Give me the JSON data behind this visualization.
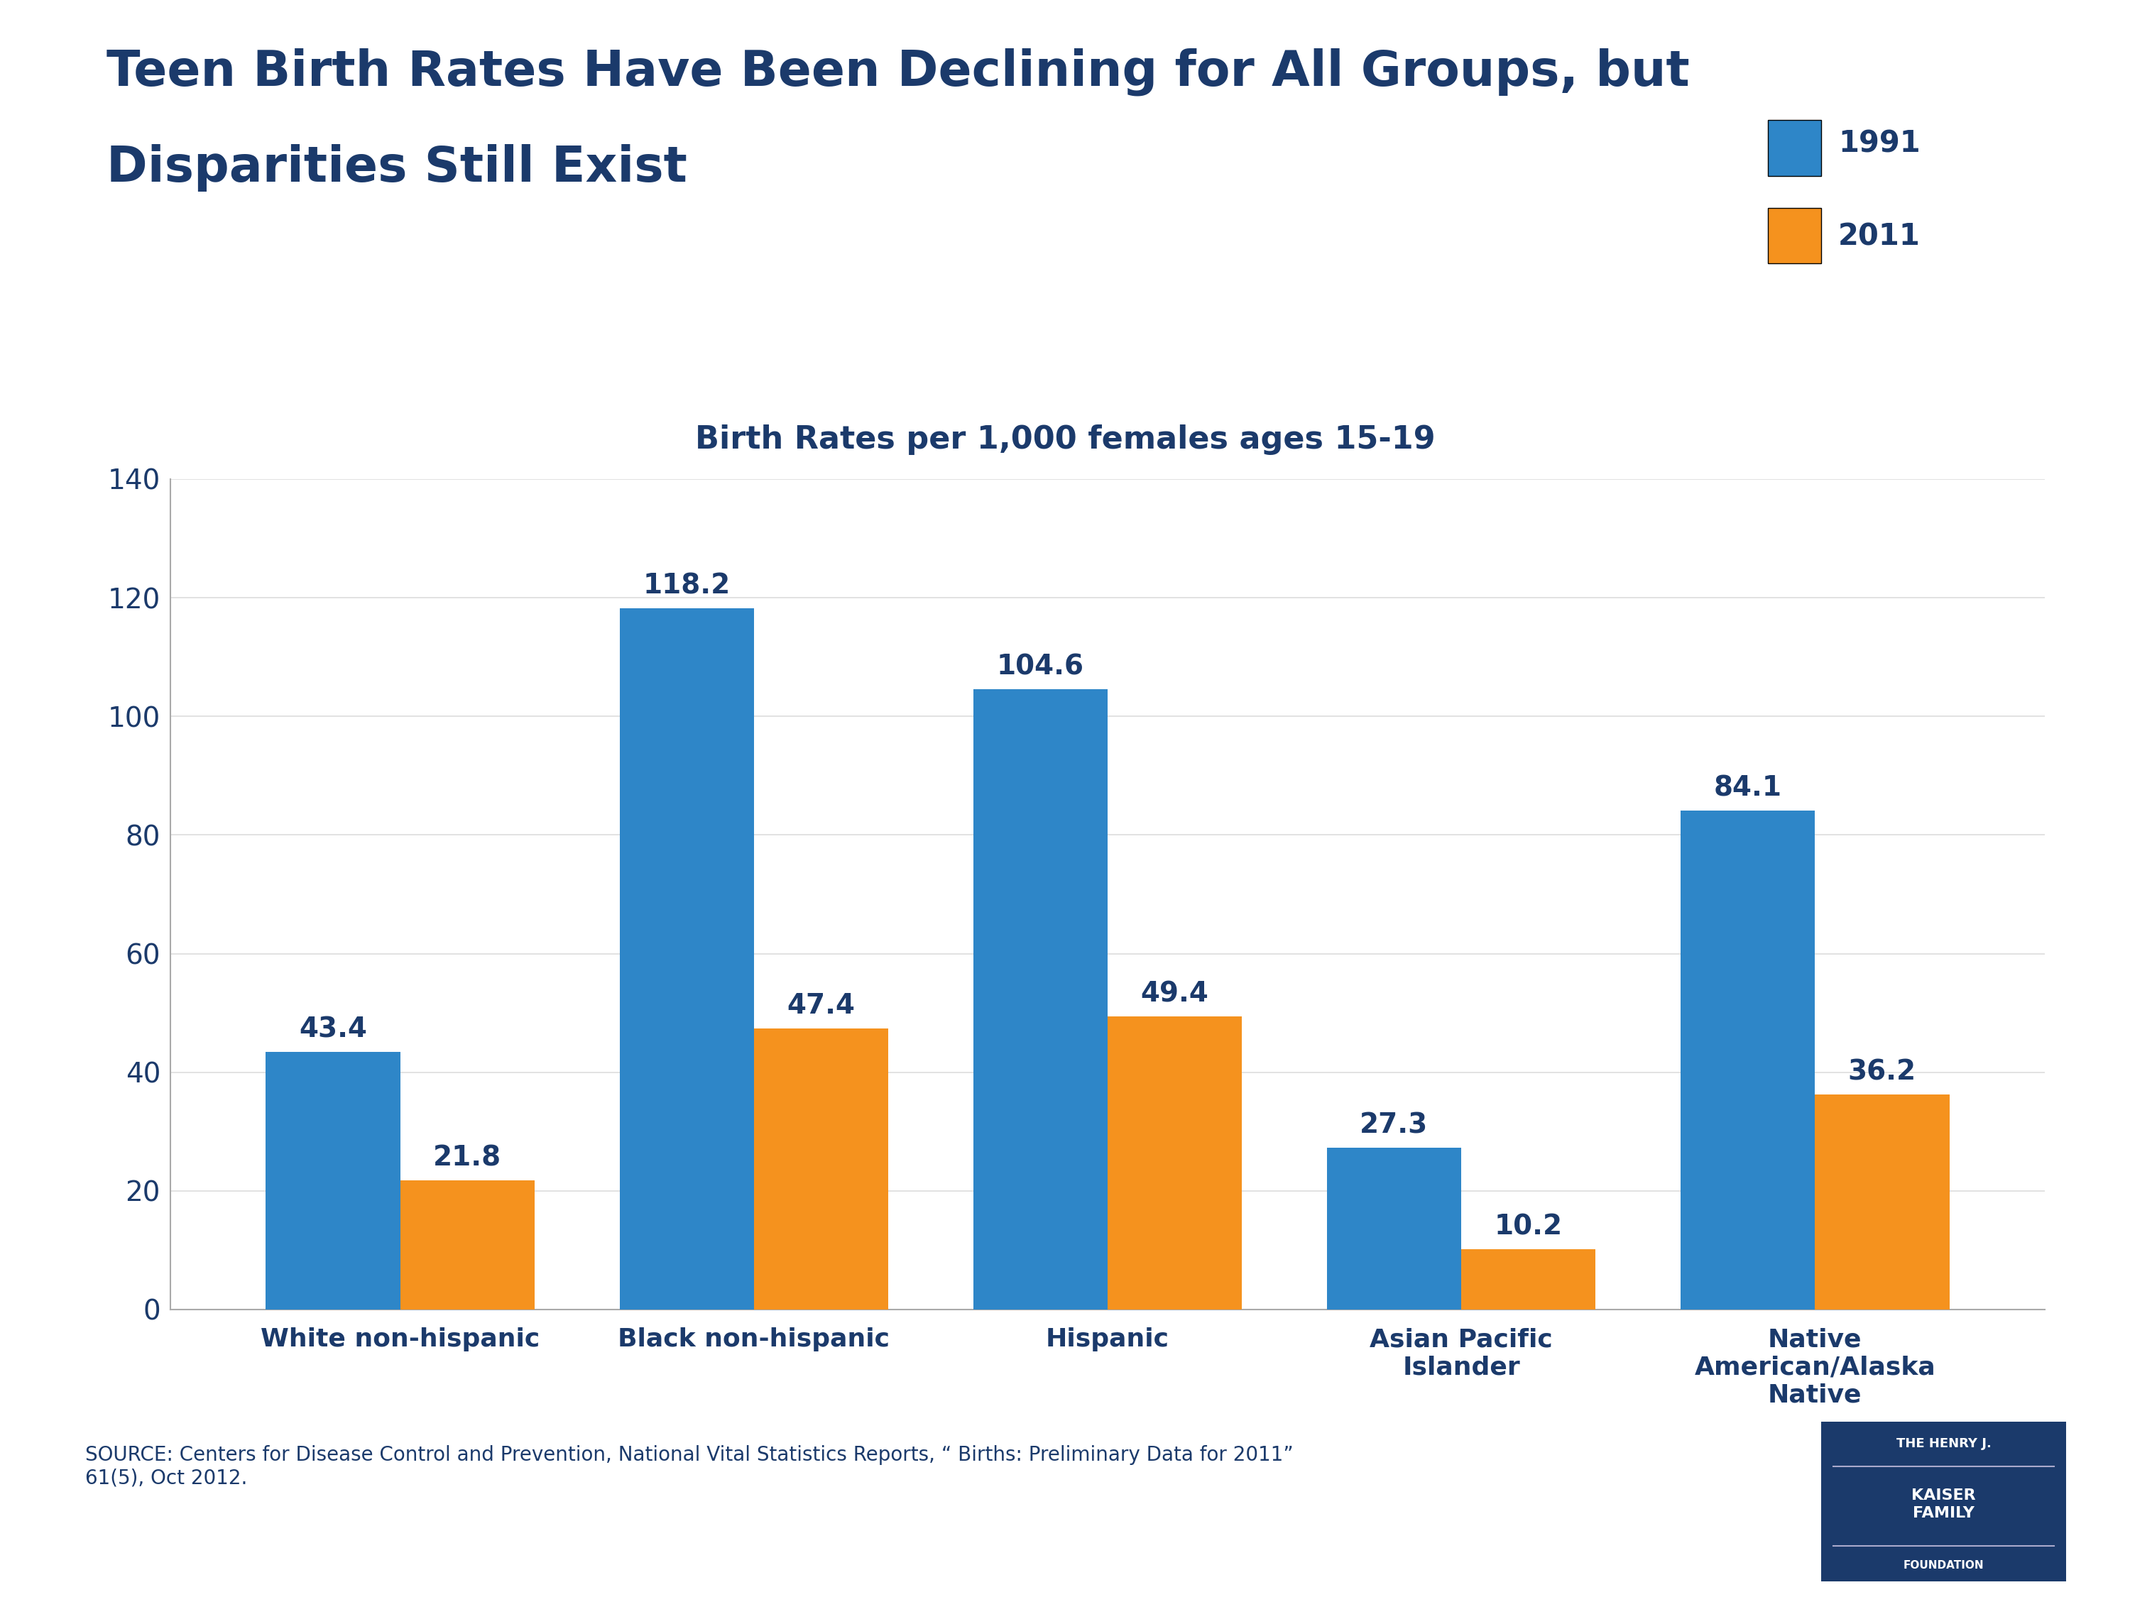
{
  "title_line1": "Teen Birth Rates Have Been Declining for All Groups, but",
  "title_line2": "Disparities Still Exist",
  "subtitle": "Birth Rates per 1,000 females ages 15-19",
  "categories": [
    "White non-hispanic",
    "Black non-hispanic",
    "Hispanic",
    "Asian Pacific\nIslander",
    "Native\nAmerican/Alaska\nNative"
  ],
  "values_1991": [
    43.4,
    118.2,
    104.6,
    27.3,
    84.1
  ],
  "values_2011": [
    21.8,
    47.4,
    49.4,
    10.2,
    36.2
  ],
  "color_1991": "#2E86C8",
  "color_2011": "#F5921E",
  "legend_labels": [
    "1991",
    "2011"
  ],
  "ylim": [
    0,
    140
  ],
  "yticks": [
    0,
    20,
    40,
    60,
    80,
    100,
    120,
    140
  ],
  "title_color": "#1B3A6B",
  "subtitle_color": "#1B3A6B",
  "axis_color": "#1B3A6B",
  "label_color": "#1B3A6B",
  "value_label_color_1991": "#1B3A6B",
  "value_label_color_2011": "#1B3A6B",
  "source_text": "SOURCE: Centers for Disease Control and Prevention, National Vital Statistics Reports, “ Births: Preliminary Data for 2011”\n61(5), Oct 2012.",
  "background_color": "#FFFFFF",
  "bar_width": 0.38,
  "kaiser_box_color": "#1B3A6B",
  "kaiser_text": "THE HENRY J.\nKAISER\nFAMILY\nFOUNDATION"
}
